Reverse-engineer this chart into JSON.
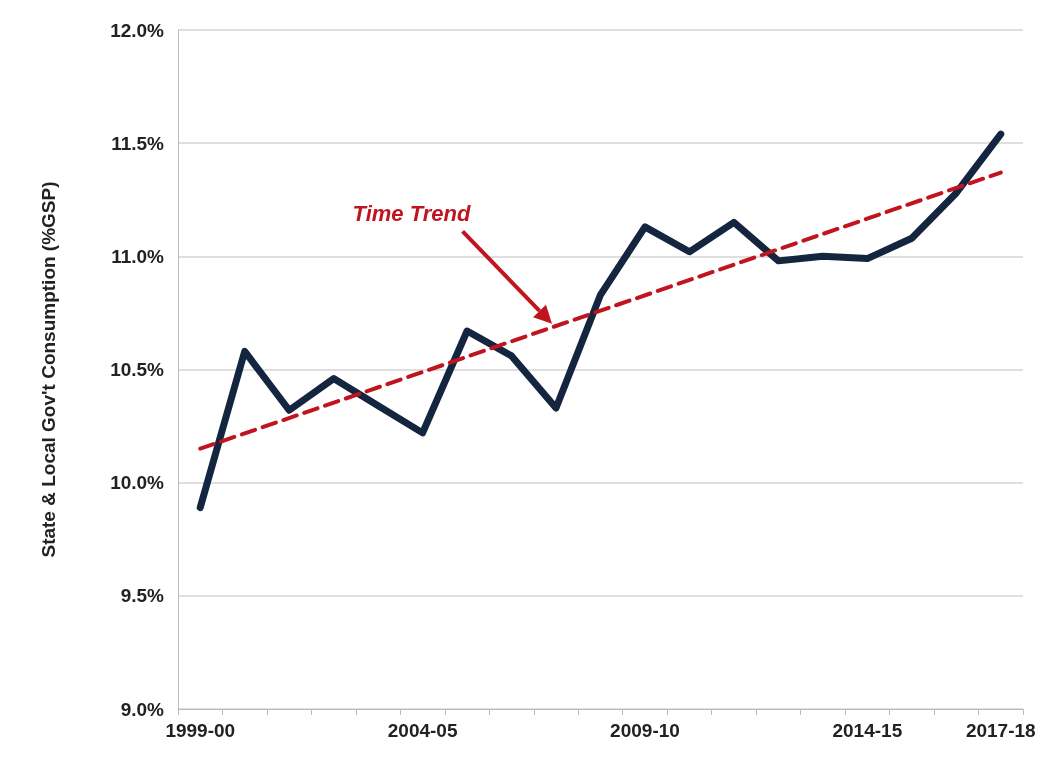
{
  "chart_data": {
    "type": "line",
    "ylabel": "State & Local Gov't Consumption (%GSP)",
    "categories": [
      "1999-00",
      null,
      null,
      null,
      null,
      "2004-05",
      null,
      null,
      null,
      null,
      "2009-10",
      null,
      null,
      null,
      null,
      "2014-15",
      null,
      null,
      "2017-18"
    ],
    "series": [
      {
        "color": "#14253f",
        "values": [
          9.89,
          10.58,
          10.32,
          10.46,
          10.34,
          10.22,
          10.67,
          10.56,
          10.33,
          10.83,
          11.13,
          11.02,
          11.15,
          10.98,
          11.0,
          10.99,
          11.08,
          11.28,
          11.54
        ],
        "line_style": "solid"
      },
      {
        "name": "Time Trend",
        "color": "#c0151f",
        "values": [
          10.15,
          null,
          null,
          null,
          null,
          null,
          null,
          null,
          null,
          null,
          null,
          null,
          null,
          null,
          null,
          null,
          null,
          null,
          11.37
        ],
        "line_style": "dashed"
      }
    ],
    "ylim": [
      9.0,
      12.0
    ],
    "yticks": [
      {
        "value": 9.0,
        "label": "9.0%"
      },
      {
        "value": 9.5,
        "label": "9.5%"
      },
      {
        "value": 10.0,
        "label": "10.0%"
      },
      {
        "value": 10.5,
        "label": "10.5%"
      },
      {
        "value": 11.0,
        "label": "11.0%"
      },
      {
        "value": 11.5,
        "label": "11.5%"
      },
      {
        "value": 12.0,
        "label": "12.0%"
      }
    ],
    "grid": "y",
    "legend": false,
    "marker": "none"
  }
}
